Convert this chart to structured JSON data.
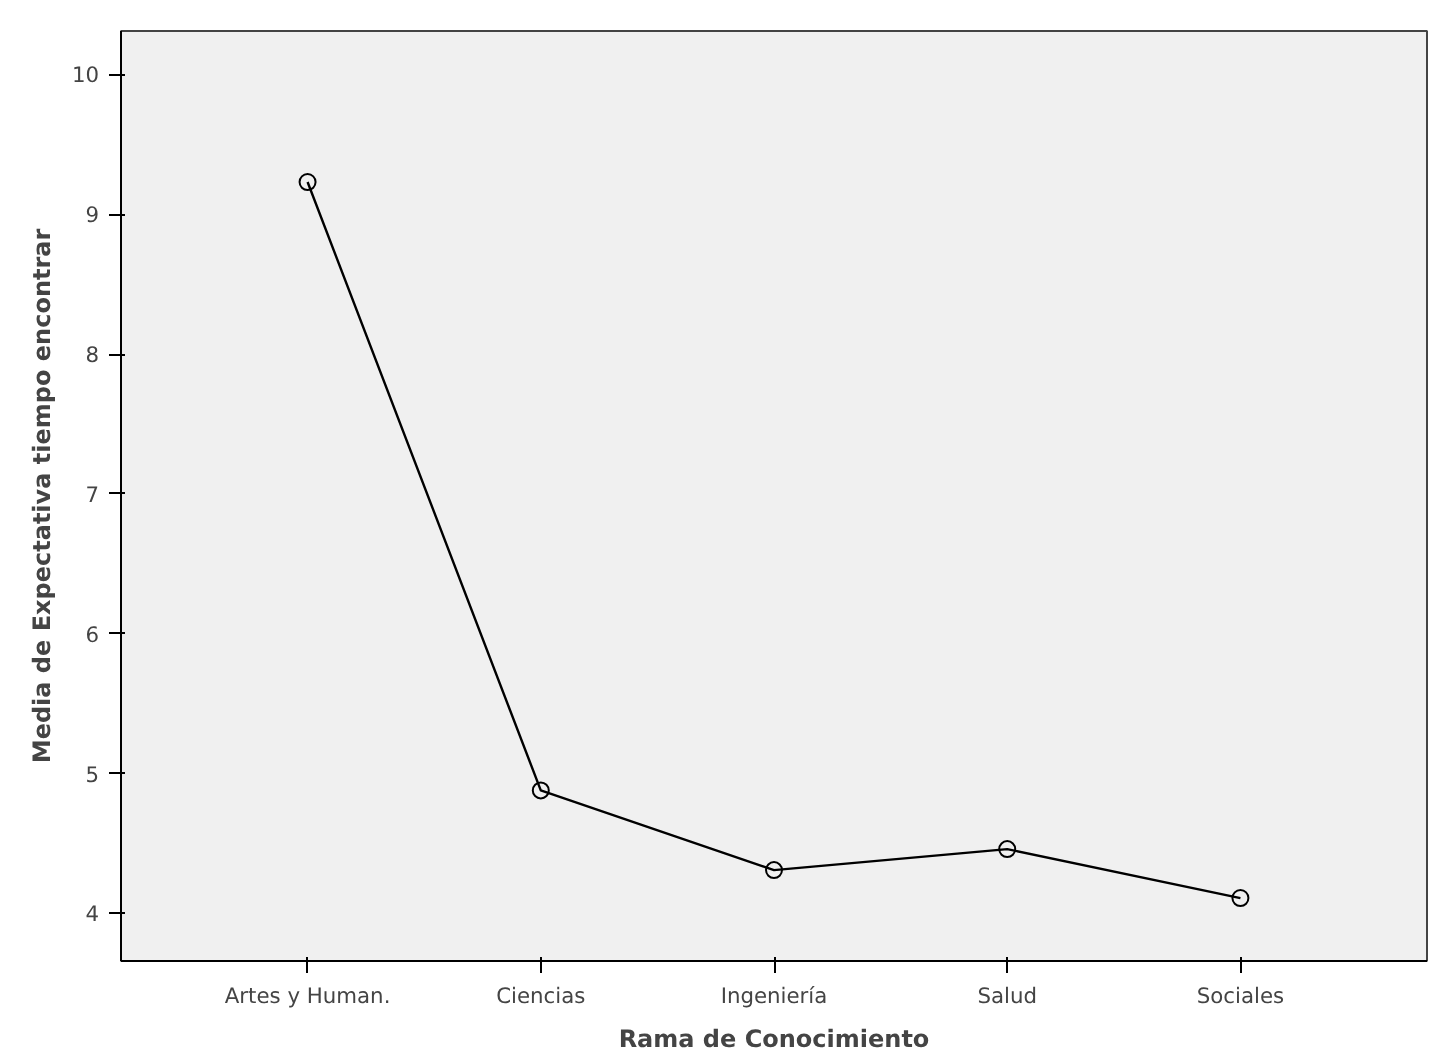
{
  "chart_data": {
    "type": "line",
    "xlabel": "Rama de Conocimiento",
    "ylabel": "Media de Expectativa tiempo encontrar",
    "categories": [
      "Artes y Human.",
      "Ciencias",
      "Ingeniería",
      "Salud",
      "Sociales"
    ],
    "values": [
      9.23,
      4.88,
      4.31,
      4.46,
      4.11
    ],
    "color": "#000000",
    "marker": "circle",
    "line_style": "solid",
    "ylim": [
      3.66,
      10.31
    ],
    "yticks": [
      4,
      5,
      6,
      7,
      8,
      9,
      10
    ],
    "grid": false
  }
}
